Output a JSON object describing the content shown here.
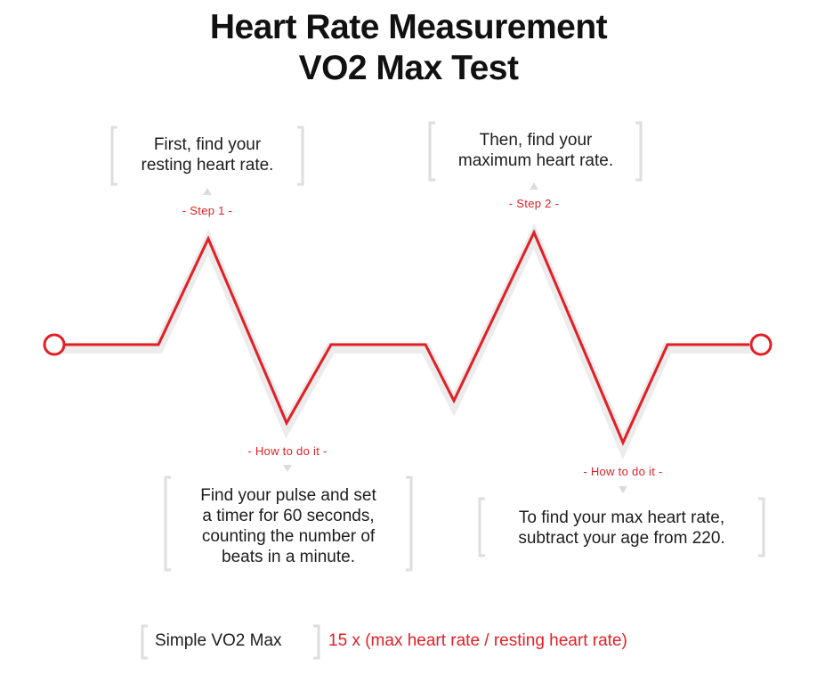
{
  "title": {
    "line1": "Heart Rate Measurement",
    "line2": "VO2 Max Test"
  },
  "colors": {
    "accent": "#e31e24",
    "text": "#1d1d1d",
    "bracket": "#dedede",
    "shadow": "#ededed"
  },
  "steps": [
    {
      "label": "- Step 1 -",
      "lines": [
        "First, find your",
        "resting heart rate."
      ]
    },
    {
      "label": "- Step 2 -",
      "lines": [
        "Then, find your",
        "maximum heart rate."
      ]
    }
  ],
  "how_to": [
    {
      "label": "- How to do it -",
      "lines": [
        "Find your pulse and set",
        "a timer for 60 seconds,",
        "counting the number of",
        "beats in a minute."
      ]
    },
    {
      "label": "- How to do it -",
      "lines": [
        "To find your max heart rate,",
        "subtract your age from 220."
      ]
    }
  ],
  "formula": {
    "label": "Simple VO2 Max",
    "value": "15 x (max heart rate / resting heart rate)"
  }
}
